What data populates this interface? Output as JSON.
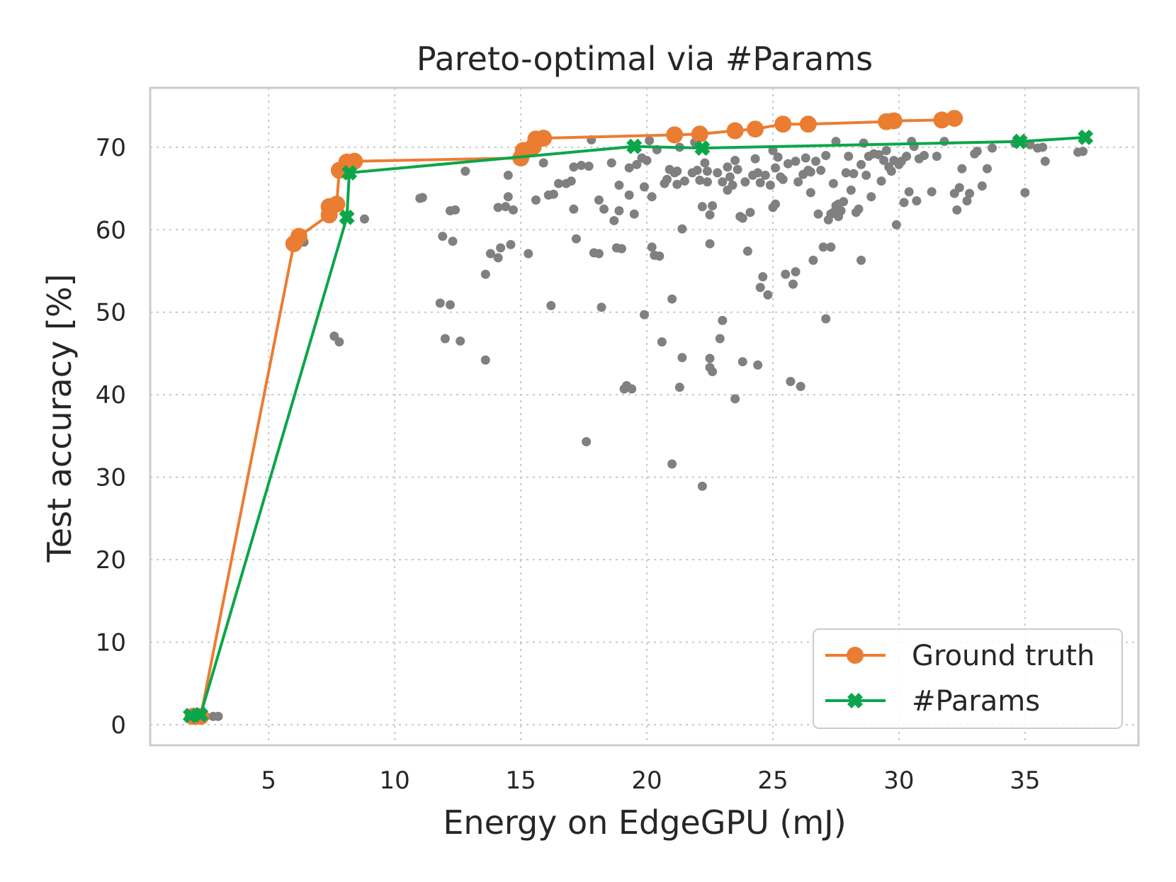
{
  "chart_data": {
    "type": "scatter",
    "title": "Pareto-optimal via #Params",
    "xlabel": "Energy on EdgeGPU (mJ)",
    "ylabel": "Test accuracy [%]",
    "xlim": [
      0.3,
      39.5
    ],
    "ylim": [
      -2.5,
      77.2
    ],
    "x_ticks": [
      5,
      10,
      15,
      20,
      25,
      30,
      35
    ],
    "y_ticks": [
      0,
      10,
      20,
      30,
      40,
      50,
      60,
      70
    ],
    "grid": true,
    "legend_position": "bottom-right",
    "colors": {
      "background_points": "#808080",
      "ground_truth": "#EB7D32",
      "params": "#0BA64A"
    },
    "background_points": [
      [
        2.1,
        1.0
      ],
      [
        2.5,
        1.0
      ],
      [
        2.8,
        1.0
      ],
      [
        3.0,
        1.0
      ],
      [
        6.4,
        58.5
      ],
      [
        7.6,
        47.1
      ],
      [
        7.8,
        46.4
      ],
      [
        8.8,
        61.3
      ],
      [
        11.0,
        63.8
      ],
      [
        11.1,
        63.9
      ],
      [
        11.9,
        59.2
      ],
      [
        11.8,
        51.1
      ],
      [
        12.0,
        46.8
      ],
      [
        12.2,
        50.9
      ],
      [
        12.3,
        58.6
      ],
      [
        12.2,
        62.3
      ],
      [
        12.4,
        62.4
      ],
      [
        12.6,
        46.5
      ],
      [
        12.8,
        67.1
      ],
      [
        13.6,
        54.6
      ],
      [
        13.6,
        44.2
      ],
      [
        13.8,
        57.1
      ],
      [
        14.1,
        62.7
      ],
      [
        14.1,
        56.6
      ],
      [
        14.2,
        57.8
      ],
      [
        14.4,
        62.8
      ],
      [
        14.5,
        64.0
      ],
      [
        14.6,
        58.2
      ],
      [
        14.7,
        62.4
      ],
      [
        14.5,
        66.6
      ],
      [
        15.3,
        57.1
      ],
      [
        15.6,
        63.6
      ],
      [
        15.9,
        68.1
      ],
      [
        16.1,
        64.2
      ],
      [
        16.2,
        50.8
      ],
      [
        16.3,
        64.3
      ],
      [
        16.5,
        65.6
      ],
      [
        16.8,
        65.6
      ],
      [
        17.0,
        65.9
      ],
      [
        17.1,
        67.6
      ],
      [
        17.1,
        62.5
      ],
      [
        17.2,
        58.9
      ],
      [
        17.4,
        67.8
      ],
      [
        17.6,
        34.3
      ],
      [
        17.7,
        67.7
      ],
      [
        17.8,
        70.9
      ],
      [
        17.9,
        57.2
      ],
      [
        18.1,
        57.1
      ],
      [
        18.1,
        63.6
      ],
      [
        18.2,
        50.6
      ],
      [
        18.3,
        62.5
      ],
      [
        18.6,
        68.1
      ],
      [
        18.7,
        61.1
      ],
      [
        18.8,
        57.8
      ],
      [
        18.9,
        62.3
      ],
      [
        18.9,
        65.4
      ],
      [
        19.0,
        57.7
      ],
      [
        19.1,
        40.7
      ],
      [
        19.2,
        41.1
      ],
      [
        19.3,
        64.2
      ],
      [
        19.3,
        67.5
      ],
      [
        19.4,
        40.7
      ],
      [
        19.5,
        61.9
      ],
      [
        19.6,
        67.9
      ],
      [
        19.8,
        68.7
      ],
      [
        19.9,
        49.7
      ],
      [
        19.9,
        65.2
      ],
      [
        20.0,
        68.4
      ],
      [
        20.1,
        70.8
      ],
      [
        20.2,
        57.9
      ],
      [
        20.2,
        64.0
      ],
      [
        20.3,
        56.9
      ],
      [
        20.4,
        69.7
      ],
      [
        20.5,
        56.8
      ],
      [
        20.6,
        46.4
      ],
      [
        20.7,
        65.6
      ],
      [
        20.8,
        66.1
      ],
      [
        20.9,
        67.3
      ],
      [
        21.0,
        51.6
      ],
      [
        21.0,
        31.6
      ],
      [
        21.1,
        66.9
      ],
      [
        21.2,
        65.5
      ],
      [
        21.2,
        67.1
      ],
      [
        21.3,
        40.9
      ],
      [
        21.3,
        70.0
      ],
      [
        21.4,
        60.1
      ],
      [
        21.4,
        44.5
      ],
      [
        21.5,
        65.9
      ],
      [
        21.8,
        66.9
      ],
      [
        21.9,
        70.6
      ],
      [
        22.0,
        67.2
      ],
      [
        22.1,
        66.0
      ],
      [
        22.2,
        28.9
      ],
      [
        22.2,
        62.8
      ],
      [
        22.3,
        68.1
      ],
      [
        22.4,
        65.8
      ],
      [
        22.4,
        67.1
      ],
      [
        22.5,
        61.8
      ],
      [
        22.5,
        58.3
      ],
      [
        22.5,
        44.4
      ],
      [
        22.5,
        43.3
      ],
      [
        22.6,
        42.8
      ],
      [
        22.6,
        62.9
      ],
      [
        22.8,
        66.9
      ],
      [
        22.9,
        46.8
      ],
      [
        23.0,
        65.8
      ],
      [
        23.0,
        49.0
      ],
      [
        23.2,
        64.8
      ],
      [
        23.2,
        67.6
      ],
      [
        23.3,
        66.4
      ],
      [
        23.4,
        65.4
      ],
      [
        23.5,
        39.5
      ],
      [
        23.5,
        68.4
      ],
      [
        23.6,
        67.3
      ],
      [
        23.7,
        61.6
      ],
      [
        23.8,
        44.0
      ],
      [
        23.8,
        61.4
      ],
      [
        23.9,
        65.8
      ],
      [
        24.0,
        57.4
      ],
      [
        24.1,
        62.1
      ],
      [
        24.2,
        66.6
      ],
      [
        24.3,
        68.6
      ],
      [
        24.4,
        66.9
      ],
      [
        24.4,
        43.6
      ],
      [
        24.5,
        65.7
      ],
      [
        24.5,
        53.0
      ],
      [
        24.6,
        54.3
      ],
      [
        24.7,
        66.6
      ],
      [
        24.8,
        52.1
      ],
      [
        24.9,
        65.4
      ],
      [
        25.0,
        69.6
      ],
      [
        25.0,
        62.7
      ],
      [
        25.1,
        67.5
      ],
      [
        25.1,
        63.1
      ],
      [
        25.2,
        68.8
      ],
      [
        25.3,
        66.4
      ],
      [
        25.4,
        66.1
      ],
      [
        25.5,
        54.6
      ],
      [
        25.6,
        68.0
      ],
      [
        25.7,
        41.6
      ],
      [
        25.8,
        53.4
      ],
      [
        25.9,
        54.9
      ],
      [
        25.9,
        68.3
      ],
      [
        26.0,
        65.8
      ],
      [
        26.1,
        41.0
      ],
      [
        26.2,
        66.7
      ],
      [
        26.3,
        68.7
      ],
      [
        26.4,
        67.2
      ],
      [
        26.5,
        67.0
      ],
      [
        26.5,
        64.5
      ],
      [
        26.6,
        56.3
      ],
      [
        26.7,
        68.3
      ],
      [
        26.8,
        61.9
      ],
      [
        26.9,
        67.2
      ],
      [
        27.0,
        57.9
      ],
      [
        27.1,
        69.0
      ],
      [
        27.1,
        49.2
      ],
      [
        27.2,
        61.2
      ],
      [
        27.3,
        61.9
      ],
      [
        27.3,
        57.9
      ],
      [
        27.4,
        62.1
      ],
      [
        27.4,
        65.6
      ],
      [
        27.5,
        62.9
      ],
      [
        27.5,
        70.7
      ],
      [
        27.6,
        61.6
      ],
      [
        27.6,
        63.1
      ],
      [
        27.7,
        62.3
      ],
      [
        27.8,
        63.4
      ],
      [
        27.9,
        66.9
      ],
      [
        28.0,
        68.9
      ],
      [
        28.1,
        64.8
      ],
      [
        28.2,
        66.8
      ],
      [
        28.3,
        62.1
      ],
      [
        28.4,
        62.5
      ],
      [
        28.5,
        56.3
      ],
      [
        28.5,
        67.9
      ],
      [
        28.6,
        70.5
      ],
      [
        28.7,
        66.6
      ],
      [
        28.8,
        68.9
      ],
      [
        28.9,
        64.0
      ],
      [
        29.0,
        69.2
      ],
      [
        29.2,
        69.1
      ],
      [
        29.3,
        65.9
      ],
      [
        29.4,
        68.4
      ],
      [
        29.5,
        69.6
      ],
      [
        29.6,
        67.6
      ],
      [
        29.7,
        67.1
      ],
      [
        29.8,
        68.4
      ],
      [
        29.9,
        60.6
      ],
      [
        30.0,
        67.9
      ],
      [
        30.1,
        68.3
      ],
      [
        30.2,
        63.3
      ],
      [
        30.3,
        68.9
      ],
      [
        30.4,
        64.6
      ],
      [
        30.5,
        70.7
      ],
      [
        30.6,
        70.1
      ],
      [
        30.7,
        63.5
      ],
      [
        30.8,
        68.6
      ],
      [
        31.0,
        69.0
      ],
      [
        31.3,
        64.6
      ],
      [
        31.5,
        68.9
      ],
      [
        31.8,
        70.7
      ],
      [
        32.2,
        64.4
      ],
      [
        32.3,
        62.4
      ],
      [
        32.4,
        65.1
      ],
      [
        32.5,
        67.4
      ],
      [
        32.7,
        63.5
      ],
      [
        32.8,
        64.4
      ],
      [
        33.0,
        69.2
      ],
      [
        33.1,
        69.5
      ],
      [
        33.3,
        65.3
      ],
      [
        33.5,
        67.4
      ],
      [
        33.7,
        69.9
      ],
      [
        34.6,
        70.5
      ],
      [
        35.0,
        64.5
      ],
      [
        35.2,
        70.3
      ],
      [
        35.5,
        69.9
      ],
      [
        35.7,
        70.0
      ],
      [
        35.8,
        68.3
      ],
      [
        37.1,
        69.4
      ],
      [
        37.3,
        69.5
      ]
    ],
    "series": [
      {
        "name": "Ground truth",
        "marker": "circle",
        "points": [
          [
            2.0,
            1.0
          ],
          [
            2.1,
            1.0
          ],
          [
            2.3,
            1.0
          ],
          [
            6.0,
            58.3
          ],
          [
            6.2,
            59.2
          ],
          [
            7.4,
            61.8
          ],
          [
            7.4,
            62.8
          ],
          [
            7.7,
            63.1
          ],
          [
            7.8,
            67.2
          ],
          [
            8.1,
            68.2
          ],
          [
            8.4,
            68.3
          ],
          [
            15.0,
            68.7
          ],
          [
            15.1,
            69.6
          ],
          [
            15.5,
            70.1
          ],
          [
            15.6,
            71.0
          ],
          [
            15.9,
            71.1
          ],
          [
            21.1,
            71.5
          ],
          [
            22.1,
            71.6
          ],
          [
            23.5,
            72.0
          ],
          [
            24.3,
            72.2
          ],
          [
            25.4,
            72.8
          ],
          [
            26.4,
            72.8
          ],
          [
            29.5,
            73.1
          ],
          [
            29.8,
            73.2
          ],
          [
            31.7,
            73.3
          ],
          [
            32.2,
            73.5
          ]
        ]
      },
      {
        "name": "#Params",
        "marker": "x",
        "points": [
          [
            1.9,
            1.1
          ],
          [
            2.3,
            1.2
          ],
          [
            8.1,
            61.5
          ],
          [
            8.2,
            66.9
          ],
          [
            19.5,
            70.1
          ],
          [
            22.2,
            69.9
          ],
          [
            34.8,
            70.7
          ],
          [
            37.4,
            71.2
          ]
        ]
      }
    ]
  }
}
